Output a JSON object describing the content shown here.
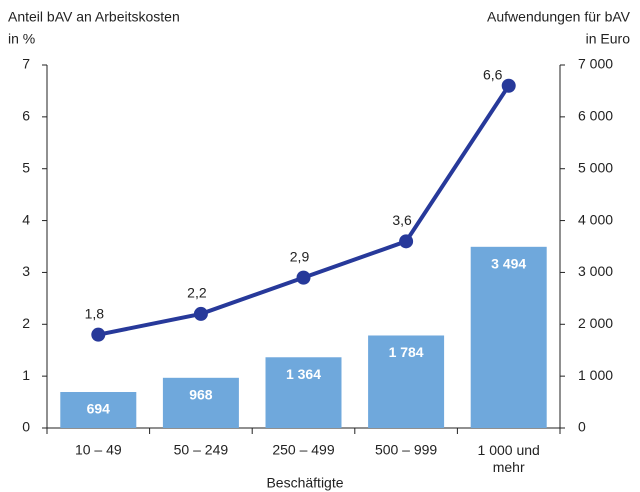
{
  "chart_data": {
    "type": "bar_line",
    "ylabel": [
      "Anteil bAV an Arbeitskosten",
      "in %"
    ],
    "y2label": [
      "Aufwendungen für bAV",
      "in Euro"
    ],
    "xlabel": "Beschäftigte",
    "categories": [
      "10 – 49",
      "50 – 249",
      "250 – 499",
      "500 – 999",
      "1 000 und mehr"
    ],
    "series": [
      {
        "type": "bar",
        "axis": "y2",
        "color": "#6fa8dc",
        "values": [
          694,
          968,
          1364,
          1784,
          3494
        ],
        "value_labels": [
          "694",
          "968",
          "1 364",
          "1 784",
          "3 494"
        ]
      },
      {
        "type": "line",
        "axis": "y",
        "color": "#27399a",
        "values": [
          1.8,
          2.2,
          2.9,
          3.6,
          6.6
        ],
        "value_labels": [
          "1,8",
          "2,2",
          "2,9",
          "3,6",
          "6,6"
        ]
      }
    ],
    "ylim": [
      0,
      7
    ],
    "yticks": [
      0,
      1,
      2,
      3,
      4,
      5,
      6,
      7
    ],
    "y2lim": [
      0,
      7000
    ],
    "y2ticks": [
      0,
      {
        "value": 1000,
        "label": "1 000"
      },
      {
        "value": 2000,
        "label": "2 000"
      },
      {
        "value": 3000,
        "label": "3 000"
      },
      {
        "value": 4000,
        "label": "4 000"
      },
      {
        "value": 5000,
        "label": "5 000"
      },
      {
        "value": 6000,
        "label": "6 000"
      },
      {
        "value": 7000,
        "label": "7 000"
      }
    ]
  }
}
